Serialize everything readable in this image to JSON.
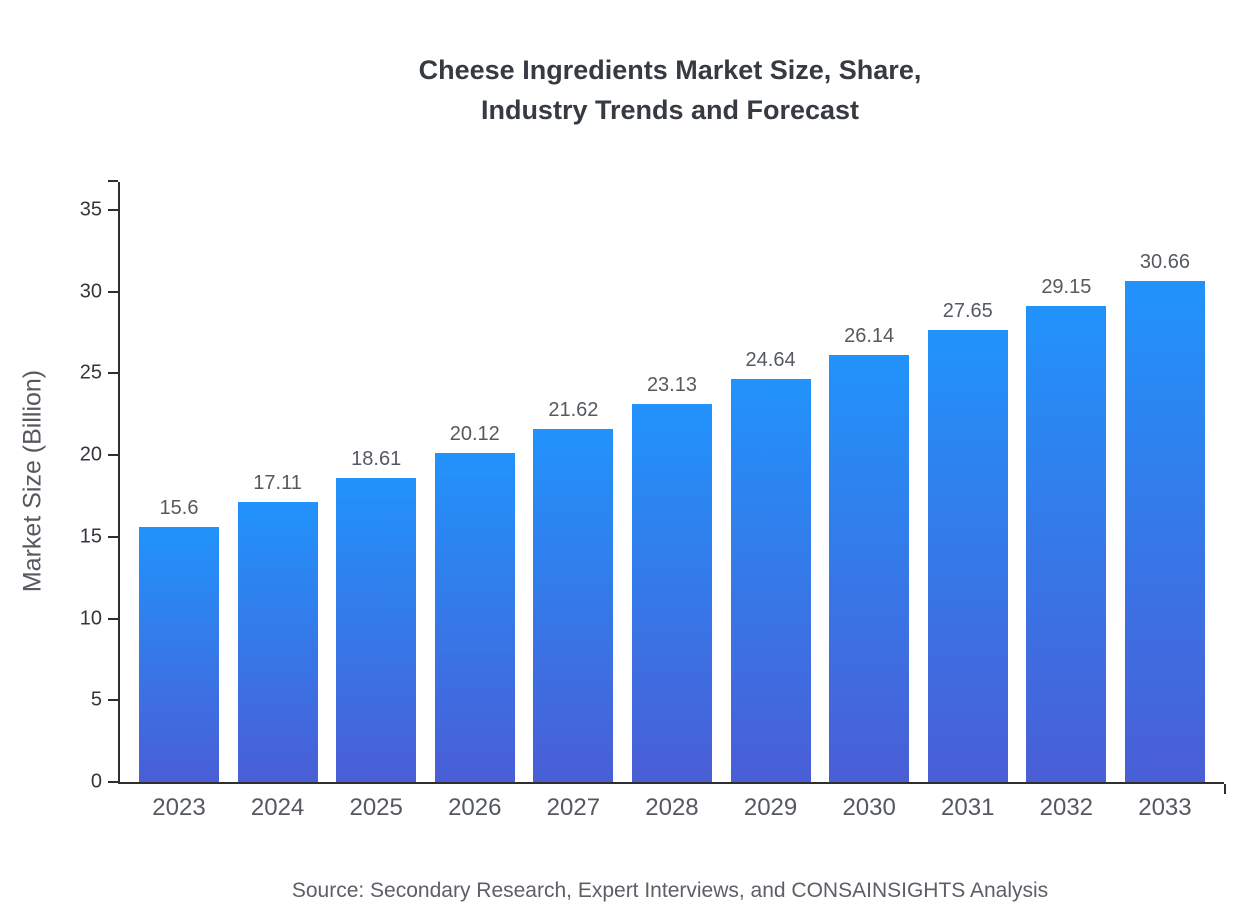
{
  "chart_data": {
    "type": "bar",
    "title_lines": [
      "Cheese Ingredients Market Size, Share,",
      "Industry Trends and Forecast"
    ],
    "title": "Cheese Ingredients Market Size, Share, Industry Trends and Forecast",
    "categories": [
      "2023",
      "2024",
      "2025",
      "2026",
      "2027",
      "2028",
      "2029",
      "2030",
      "2031",
      "2032",
      "2033"
    ],
    "values": [
      15.6,
      17.11,
      18.61,
      20.12,
      21.62,
      23.13,
      24.64,
      26.14,
      27.65,
      29.15,
      30.66
    ],
    "value_labels": [
      "15.6",
      "17.11",
      "18.61",
      "20.12",
      "21.62",
      "23.13",
      "24.64",
      "26.14",
      "27.65",
      "29.15",
      "30.66"
    ],
    "xlabel": "",
    "ylabel": "Market Size (Billion)",
    "ylim": [
      0,
      35
    ],
    "yticks": [
      0,
      5,
      10,
      15,
      20,
      25,
      30,
      35
    ],
    "grid": false,
    "legend": "none",
    "colors": {
      "bar_gradient_top": "#2193fb",
      "bar_gradient_bottom": "#4a5ed6",
      "axis": "#2f2f2f",
      "title_text": "#363b42",
      "label_text": "#55595f"
    },
    "source": "Source: Secondary Research, Expert Interviews, and CONSAINSIGHTS Analysis"
  }
}
